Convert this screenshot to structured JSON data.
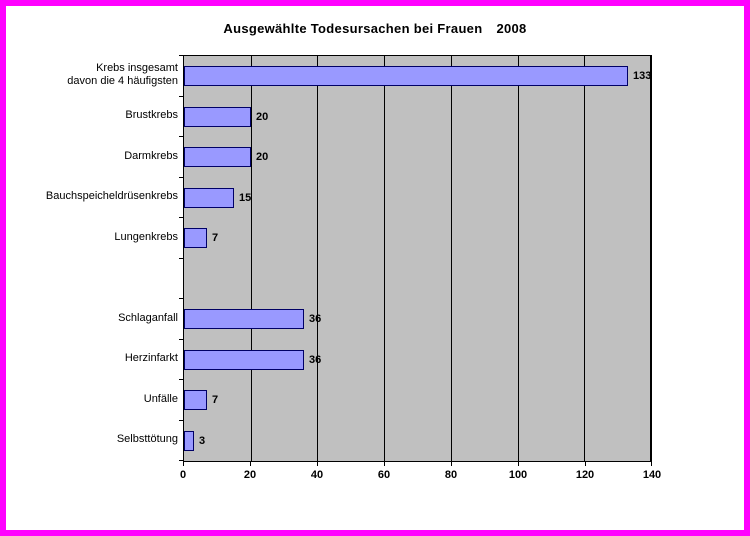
{
  "window": {
    "border_color": "#FF00FF",
    "background": "#FFFFFF"
  },
  "chart_data": {
    "type": "bar",
    "orientation": "horizontal",
    "title": "Ausgewählte Todesursachen bei Frauen",
    "year": "2008",
    "categories": [
      "Krebs insgesamt\ndavon die 4 häufigsten",
      "Brustkrebs",
      "Darmkrebs",
      "Bauchspeicheldrüsenkrebs",
      "Lungenkrebs",
      "",
      "Schlaganfall",
      "Herzinfarkt",
      "Unfälle",
      "Selbsttötung"
    ],
    "values": [
      133,
      20,
      20,
      15,
      7,
      null,
      36,
      36,
      7,
      3
    ],
    "data_labels": [
      "133",
      "20",
      "20",
      "15",
      "7",
      "",
      "36",
      "36",
      "7",
      "3"
    ],
    "xlim": [
      0,
      140
    ],
    "xticks": [
      0,
      20,
      40,
      60,
      80,
      100,
      120,
      140
    ],
    "gridlines": true,
    "legend": "none",
    "colors": {
      "bar_fill": "#9999FF",
      "bar_border": "#000066",
      "plot_background": "#C0C0C0",
      "gridline": "#000000",
      "axis": "#000000",
      "text": "#000000"
    }
  }
}
